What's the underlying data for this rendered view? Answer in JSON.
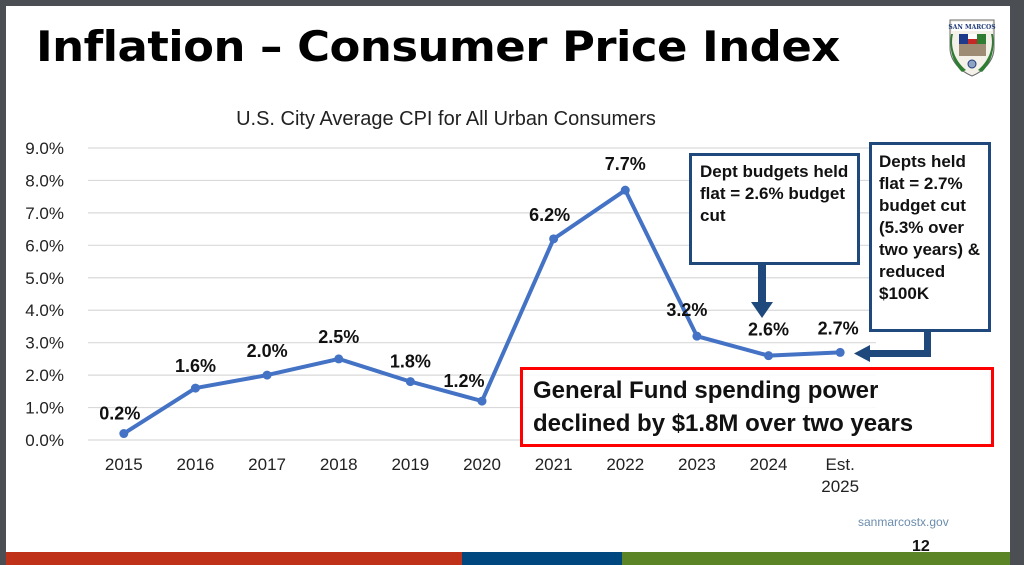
{
  "slide": {
    "title": "Inflation – Consumer Price Index",
    "logo_label": "CITY OF SAN MARCOS",
    "website": "sanmarcostx.gov",
    "page_number": "12",
    "colors": {
      "line": "#4472c4",
      "callout_border": "#1f497d",
      "alert_border": "#ff0000",
      "band_red": "#c0311a",
      "band_blue": "#00467f",
      "band_green": "#5b8427"
    }
  },
  "callouts": {
    "dept_budgets": "Dept budgets held flat = 2.6% budget cut",
    "depts_held": "Depts held flat = 2.7% budget cut (5.3% over two years) & reduced $100K"
  },
  "alert": {
    "line1": "General Fund spending power",
    "line2": "declined by $1.8M over two years"
  },
  "chart_data": {
    "type": "line",
    "title": "U.S. City Average CPI for All Urban Consumers",
    "xlabel": "",
    "ylabel": "",
    "categories": [
      "2015",
      "2016",
      "2017",
      "2018",
      "2019",
      "2020",
      "2021",
      "2022",
      "2023",
      "2024",
      "Est. 2025"
    ],
    "series": [
      {
        "name": "CPI",
        "values": [
          0.2,
          1.6,
          2.0,
          2.5,
          1.8,
          1.2,
          6.2,
          7.7,
          3.2,
          2.6,
          2.7
        ],
        "labels": [
          "0.2%",
          "1.6%",
          "2.0%",
          "2.5%",
          "1.8%",
          "1.2%",
          "6.2%",
          "7.7%",
          "3.2%",
          "2.6%",
          "2.7%"
        ]
      }
    ],
    "ylim": [
      0,
      9
    ],
    "yticks": [
      "0.0%",
      "1.0%",
      "2.0%",
      "3.0%",
      "4.0%",
      "5.0%",
      "6.0%",
      "7.0%",
      "8.0%",
      "9.0%"
    ],
    "grid": true,
    "legend": "none"
  }
}
